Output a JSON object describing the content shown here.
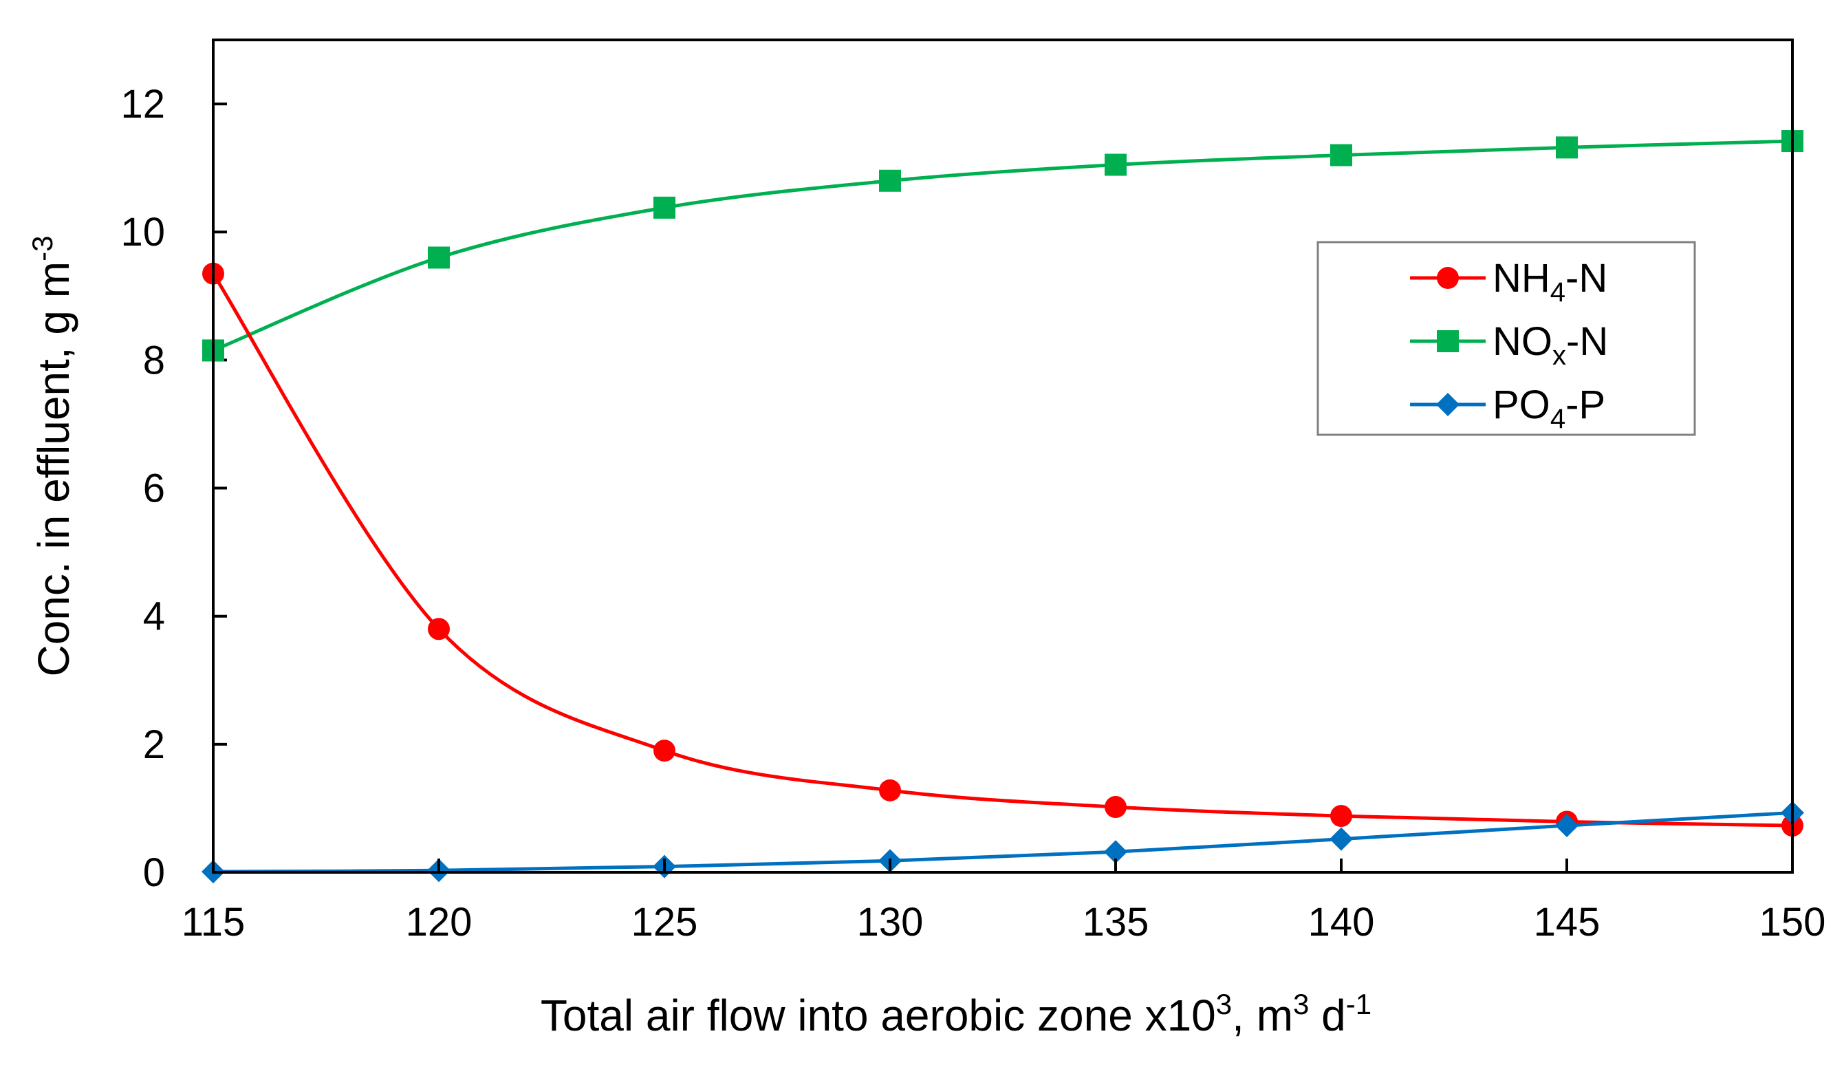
{
  "chart_data": {
    "type": "line",
    "title": "",
    "xlabel": {
      "text": "Total air flow into aerobic zone x10",
      "sup1": "3",
      "mid": ", m",
      "sup2": "3",
      "mid2": " d",
      "sup3": "-1"
    },
    "ylabel": {
      "text": "Conc. in effluent, g m",
      "sup": "-3"
    },
    "xlim": [
      115,
      150
    ],
    "ylim": [
      0,
      13
    ],
    "x_ticks": [
      115,
      120,
      125,
      130,
      135,
      140,
      145,
      150
    ],
    "y_ticks": [
      0,
      2,
      4,
      6,
      8,
      10,
      12
    ],
    "legend_position": "right",
    "series": [
      {
        "name": "NH4-N",
        "label_main": "NH",
        "label_sub": "4",
        "label_tail": "-N",
        "color": "#ff0000",
        "marker": "circle",
        "x": [
          115,
          120,
          125,
          130,
          135,
          140,
          145,
          150
        ],
        "values": [
          9.35,
          3.8,
          1.9,
          1.28,
          1.02,
          0.88,
          0.79,
          0.73
        ]
      },
      {
        "name": "NOx-N",
        "label_main": "NO",
        "label_sub": "x",
        "label_tail": "-N",
        "color": "#00b050",
        "marker": "square",
        "x": [
          115,
          120,
          125,
          130,
          135,
          140,
          145,
          150
        ],
        "values": [
          8.15,
          9.6,
          10.38,
          10.8,
          11.05,
          11.2,
          11.32,
          11.42
        ]
      },
      {
        "name": "PO4-P",
        "label_main": "PO",
        "label_sub": "4",
        "label_tail": "-P",
        "color": "#0070c0",
        "marker": "diamond",
        "x": [
          115,
          120,
          125,
          130,
          135,
          140,
          145,
          150
        ],
        "values": [
          0.01,
          0.03,
          0.09,
          0.18,
          0.32,
          0.52,
          0.73,
          0.93
        ]
      }
    ]
  }
}
